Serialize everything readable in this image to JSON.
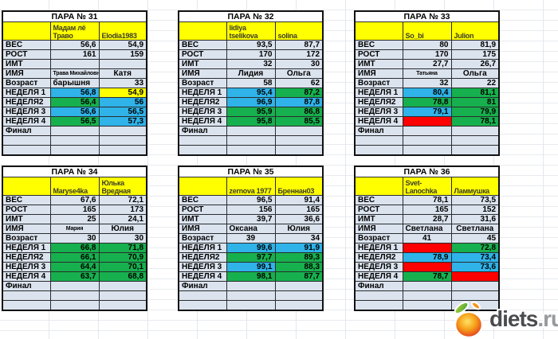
{
  "sheet": {
    "row_labels": [
      "ВЕС",
      "РОСТ",
      "ИМТ",
      "ИМЯ",
      "Возраст",
      "НЕДЕЛЯ 1",
      "НЕДЕЛЯ2",
      "НЕДЕЛЯ 3",
      "НЕДЕЛЯ 4",
      "Финал"
    ],
    "palette": {
      "blue": "#2FB3E9",
      "green": "#17B04E",
      "yellow": "#FFFF00",
      "red": "#FE0000",
      "cell": "#DBE3EE",
      "header_fill": "#FFFF00"
    },
    "tables": [
      {
        "title": "ПАРА № 31",
        "cols": [
          {
            "nick": "Мадам лё\nТраво",
            "ves": "56,6",
            "rost": "161",
            "imt": "",
            "name": "Трава Михайловна",
            "name_small": true,
            "name_align": "center",
            "age": "барышня",
            "age_align": "left",
            "weeks": [
              {
                "v": "56,8",
                "c": "blue"
              },
              {
                "v": "56,4",
                "c": "green"
              },
              {
                "v": "56,6",
                "c": "blue"
              },
              {
                "v": "56,5",
                "c": "green"
              }
            ],
            "final": ""
          },
          {
            "nick": "Elodia1983",
            "ves": "54,9",
            "rost": "159",
            "imt": "",
            "name": "Катя",
            "name_small": false,
            "name_align": "center",
            "age": "33",
            "age_align": "right",
            "weeks": [
              {
                "v": "54,9",
                "c": "yellow"
              },
              {
                "v": "56",
                "c": "blue"
              },
              {
                "v": "56,5",
                "c": "blue"
              },
              {
                "v": "57,3",
                "c": "blue"
              }
            ],
            "final": ""
          }
        ]
      },
      {
        "title": "ПАРА № 32",
        "cols": [
          {
            "nick": "lidiya tselikova",
            "ves": "93,5",
            "rost": "170",
            "imt": "32",
            "name": "Лидия",
            "name_small": false,
            "name_align": "center",
            "age": "58",
            "age_align": "right",
            "weeks": [
              {
                "v": "95,4",
                "c": "blue"
              },
              {
                "v": "96,9",
                "c": "blue"
              },
              {
                "v": "95,9",
                "c": "green"
              },
              {
                "v": "95,8",
                "c": "green"
              }
            ],
            "final": ""
          },
          {
            "nick": "solina",
            "ves": "87,7",
            "rost": "172",
            "imt": "30",
            "name": "Ольга",
            "name_small": false,
            "name_align": "center",
            "age": "62",
            "age_align": "right",
            "weeks": [
              {
                "v": "87,2",
                "c": "green"
              },
              {
                "v": "87,8",
                "c": "blue"
              },
              {
                "v": "86,8",
                "c": "green"
              },
              {
                "v": "85,5",
                "c": "green"
              }
            ],
            "final": ""
          }
        ]
      },
      {
        "title": "ПАРА № 33",
        "cols": [
          {
            "nick": "So_bi",
            "ves": "80",
            "rost": "170",
            "imt": "27,7",
            "name": "Татьяна",
            "name_small": true,
            "name_align": "center",
            "age": "32",
            "age_align": "right",
            "weeks": [
              {
                "v": "80,4",
                "c": "blue"
              },
              {
                "v": "78,8",
                "c": "green"
              },
              {
                "v": "79,1",
                "c": "blue"
              },
              {
                "v": "",
                "c": "red"
              }
            ],
            "final": ""
          },
          {
            "nick": "Julion",
            "ves": "81,9",
            "rost": "175",
            "imt": "26,7",
            "name": "Ольга",
            "name_small": false,
            "name_align": "center",
            "age": "22",
            "age_align": "right",
            "weeks": [
              {
                "v": "81,1",
                "c": "green"
              },
              {
                "v": "81",
                "c": "green"
              },
              {
                "v": "79,9",
                "c": "green"
              },
              {
                "v": "78,1",
                "c": "green"
              }
            ],
            "final": ""
          }
        ]
      },
      {
        "title": "ПАРА № 34",
        "cols": [
          {
            "nick": "Maryse4ka",
            "ves": "67,6",
            "rost": "165",
            "imt": "25",
            "name": "Мария",
            "name_small": true,
            "name_align": "center",
            "age": "30",
            "age_align": "right",
            "weeks": [
              {
                "v": "66,8",
                "c": "green"
              },
              {
                "v": "66,1",
                "c": "green"
              },
              {
                "v": "64,4",
                "c": "green"
              },
              {
                "v": "63,7",
                "c": "green"
              }
            ],
            "final": ""
          },
          {
            "nick": "Юлька\nВредная",
            "ves": "72,1",
            "rost": "173",
            "imt": "24,1",
            "name": "Юлия",
            "name_small": false,
            "name_align": "center",
            "age": "30",
            "age_align": "right",
            "weeks": [
              {
                "v": "71,8",
                "c": "green"
              },
              {
                "v": "70,9",
                "c": "green"
              },
              {
                "v": "70,1",
                "c": "green"
              },
              {
                "v": "68,8",
                "c": "green"
              }
            ],
            "final": ""
          }
        ]
      },
      {
        "title": "ПАРА № 35",
        "cols": [
          {
            "nick": "zernova 1977",
            "ves": "96,5",
            "rost": "156",
            "imt": "39,7",
            "name": "Оксана",
            "name_small": false,
            "name_align": "left",
            "age": "39",
            "age_align": "center",
            "weeks": [
              {
                "v": "99,6",
                "c": "blue"
              },
              {
                "v": "97,7",
                "c": "green"
              },
              {
                "v": "99,1",
                "c": "blue"
              },
              {
                "v": "98,1",
                "c": "green"
              }
            ],
            "final": ""
          },
          {
            "nick": "Бреннан03",
            "ves": "91,4",
            "rost": "165",
            "imt": "36,6",
            "name": "Юлия",
            "name_small": false,
            "name_align": "center",
            "age": "34",
            "age_align": "right",
            "weeks": [
              {
                "v": "91,9",
                "c": "blue"
              },
              {
                "v": "89,3",
                "c": "green"
              },
              {
                "v": "88,3",
                "c": "green"
              },
              {
                "v": "87,7",
                "c": "green"
              }
            ],
            "final": ""
          }
        ]
      },
      {
        "title": "ПАРА № 36",
        "cols": [
          {
            "nick": "Svet-Lanochka",
            "ves": "78,1",
            "rost": "165",
            "imt": "28,7",
            "name": "Светлана",
            "name_small": false,
            "name_align": "left",
            "age": "41",
            "age_align": "center",
            "weeks": [
              {
                "v": "",
                "c": "red"
              },
              {
                "v": "78,9",
                "c": "blue"
              },
              {
                "v": "",
                "c": "red"
              },
              {
                "v": "78,7",
                "c": "green"
              }
            ],
            "final": ""
          },
          {
            "nick": "Ламмушка",
            "ves": "73,5",
            "rost": "152",
            "imt": "31,6",
            "name": "Светлана",
            "name_small": false,
            "name_align": "center",
            "age": "45",
            "age_align": "right",
            "weeks": [
              {
                "v": "72,8",
                "c": "green"
              },
              {
                "v": "73,4",
                "c": "blue"
              },
              {
                "v": "73,6",
                "c": "blue"
              },
              {
                "v": "",
                "c": "red"
              }
            ],
            "final": ""
          }
        ]
      }
    ]
  },
  "logo": {
    "brand": "diets",
    "suffix": ".ru",
    "brand_color": "#4b4c4e",
    "suffix_color": "#98999b"
  }
}
